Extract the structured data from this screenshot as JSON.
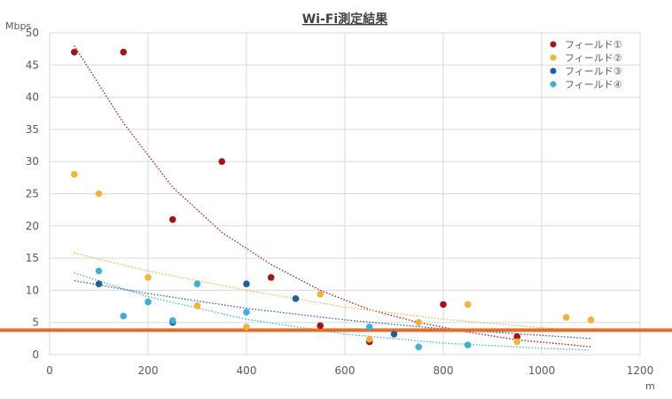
{
  "chart_data": {
    "type": "scatter",
    "title": "Wi-Fi測定結果",
    "xlabel": "m",
    "ylabel": "Mbps",
    "xlim": [
      0,
      1200
    ],
    "ylim": [
      0,
      50
    ],
    "x_ticks": [
      0,
      200,
      400,
      600,
      800,
      1000,
      1200
    ],
    "y_ticks": [
      0,
      5,
      10,
      15,
      20,
      25,
      30,
      35,
      40,
      45,
      50
    ],
    "grid": true,
    "legend_position": "top-right",
    "threshold_line": {
      "y": 3.8,
      "color": "#e46c2a"
    },
    "series": [
      {
        "name": "フィールド①",
        "color": "#a31515",
        "points": [
          [
            50,
            47
          ],
          [
            150,
            47
          ],
          [
            250,
            21
          ],
          [
            350,
            30
          ],
          [
            450,
            12
          ],
          [
            550,
            4.5
          ],
          [
            650,
            2
          ],
          [
            800,
            7.8
          ],
          [
            950,
            2.8
          ]
        ],
        "trend": [
          [
            50,
            48
          ],
          [
            150,
            36
          ],
          [
            250,
            26
          ],
          [
            350,
            19
          ],
          [
            450,
            14
          ],
          [
            550,
            10
          ],
          [
            650,
            7
          ],
          [
            750,
            5
          ],
          [
            850,
            3.5
          ],
          [
            950,
            2.3
          ],
          [
            1050,
            1.6
          ],
          [
            1100,
            1.2
          ]
        ]
      },
      {
        "name": "フィールド②",
        "color": "#f0b43a",
        "points": [
          [
            50,
            28
          ],
          [
            100,
            25
          ],
          [
            200,
            12
          ],
          [
            300,
            7.6
          ],
          [
            400,
            4.3
          ],
          [
            550,
            9.4
          ],
          [
            650,
            2.4
          ],
          [
            750,
            5
          ],
          [
            850,
            7.8
          ],
          [
            950,
            2
          ],
          [
            1050,
            5.8
          ],
          [
            1100,
            5.4
          ]
        ],
        "trend": [
          [
            50,
            15.8
          ],
          [
            200,
            13
          ],
          [
            400,
            10
          ],
          [
            600,
            7.4
          ],
          [
            800,
            5.5
          ],
          [
            1000,
            4.2
          ],
          [
            1100,
            3.6
          ]
        ]
      },
      {
        "name": "フィールド③",
        "color": "#1f5f9e",
        "points": [
          [
            100,
            11
          ],
          [
            250,
            5
          ],
          [
            400,
            11
          ],
          [
            500,
            8.7
          ],
          [
            700,
            3.2
          ]
        ],
        "trend": [
          [
            50,
            11.5
          ],
          [
            200,
            9.5
          ],
          [
            400,
            7.2
          ],
          [
            600,
            5.4
          ],
          [
            800,
            4
          ],
          [
            1000,
            3
          ],
          [
            1100,
            2.5
          ]
        ]
      },
      {
        "name": "フィールド④",
        "color": "#3ab2d6",
        "points": [
          [
            100,
            13
          ],
          [
            150,
            6
          ],
          [
            200,
            8.2
          ],
          [
            250,
            5.3
          ],
          [
            300,
            11
          ],
          [
            400,
            6.6
          ],
          [
            650,
            4.3
          ],
          [
            750,
            1.2
          ],
          [
            850,
            1.5
          ]
        ],
        "trend": [
          [
            50,
            12.7
          ],
          [
            200,
            9
          ],
          [
            400,
            5.5
          ],
          [
            600,
            3.2
          ],
          [
            800,
            1.8
          ],
          [
            1000,
            1
          ],
          [
            1100,
            0.7
          ]
        ]
      }
    ]
  }
}
